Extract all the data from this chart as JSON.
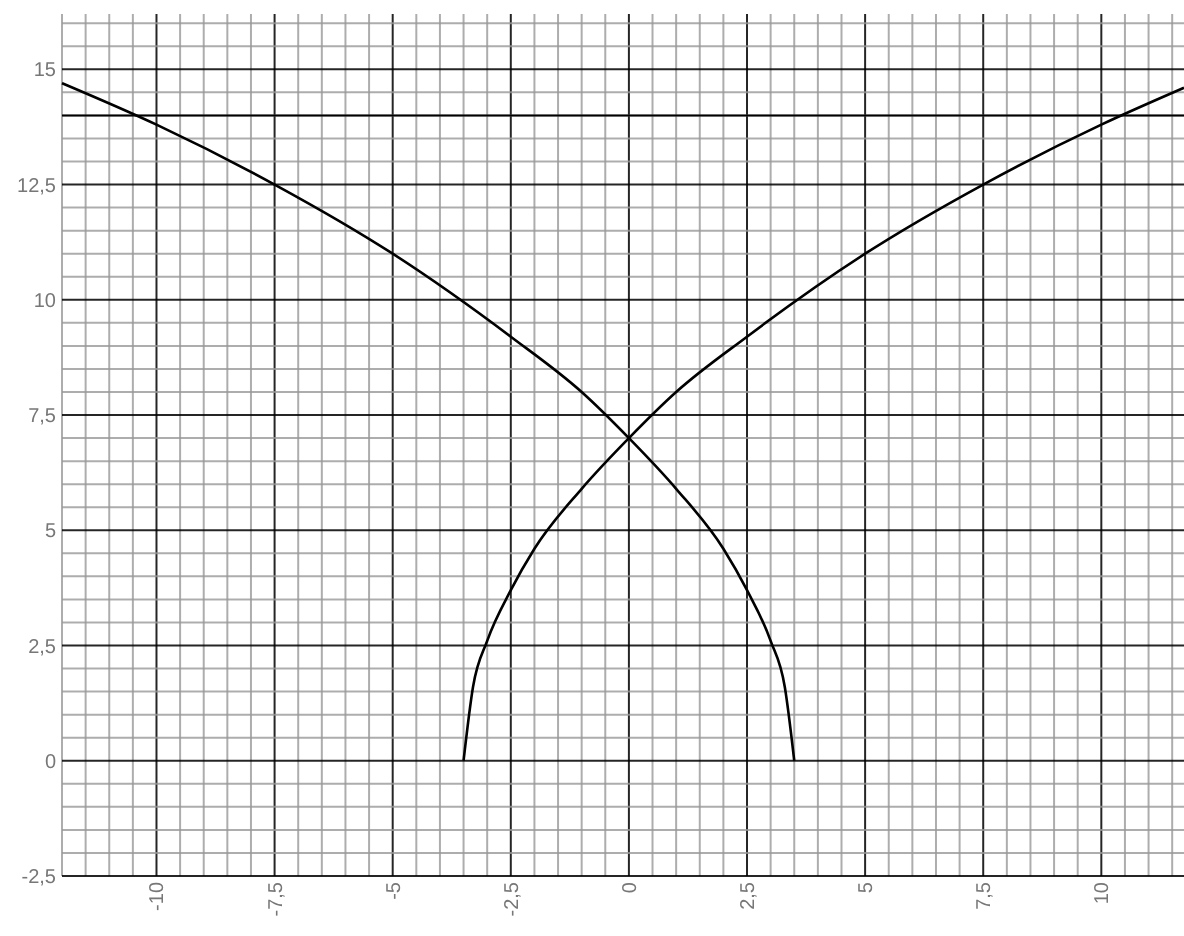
{
  "chart_data": {
    "type": "line",
    "xlim": [
      -12,
      11.75
    ],
    "ylim": [
      -2.5,
      16.2
    ],
    "grid": true,
    "line_style": "solid",
    "marker": "none",
    "xticks": [
      {
        "value": -12,
        "label": null
      },
      {
        "value": -11.5,
        "label": null
      },
      {
        "value": -11,
        "label": null
      },
      {
        "value": -10.5,
        "label": null
      },
      -10,
      {
        "value": -9.5,
        "label": null
      },
      {
        "value": -9,
        "label": null
      },
      {
        "value": -8.5,
        "label": null
      },
      {
        "value": -8,
        "label": null
      },
      {
        "value": -7.5,
        "label": "-7,5"
      },
      {
        "value": -7,
        "label": null
      },
      {
        "value": -6.5,
        "label": null
      },
      {
        "value": -6,
        "label": null
      },
      {
        "value": -5.5,
        "label": null
      },
      -5,
      {
        "value": -4.5,
        "label": null
      },
      {
        "value": -4,
        "label": null
      },
      {
        "value": -3.5,
        "label": null
      },
      {
        "value": -3,
        "label": null
      },
      {
        "value": -2.5,
        "label": "-2,5"
      },
      {
        "value": -2,
        "label": null
      },
      {
        "value": -1.5,
        "label": null
      },
      {
        "value": -1,
        "label": null
      },
      {
        "value": -0.5,
        "label": null
      },
      0,
      {
        "value": 0.5,
        "label": null
      },
      {
        "value": 1,
        "label": null
      },
      {
        "value": 1.5,
        "label": null
      },
      {
        "value": 2,
        "label": null
      },
      {
        "value": 2.5,
        "label": "2,5"
      },
      {
        "value": 3,
        "label": null
      },
      {
        "value": 3.5,
        "label": null
      },
      {
        "value": 4,
        "label": null
      },
      {
        "value": 4.5,
        "label": null
      },
      5,
      {
        "value": 5.5,
        "label": null
      },
      {
        "value": 6,
        "label": null
      },
      {
        "value": 6.5,
        "label": null
      },
      {
        "value": 7,
        "label": null
      },
      {
        "value": 7.5,
        "label": "7,5"
      },
      {
        "value": 8,
        "label": null
      },
      {
        "value": 8.5,
        "label": null
      },
      {
        "value": 9,
        "label": null
      },
      {
        "value": 9.5,
        "label": null
      },
      10,
      {
        "value": 10.5,
        "label": null
      },
      {
        "value": 11,
        "label": null
      },
      {
        "value": 11.5,
        "label": null
      }
    ],
    "yticks": [
      {
        "value": -2.5,
        "label": "-2,5"
      },
      {
        "value": -2,
        "label": null
      },
      {
        "value": -1.5,
        "label": null
      },
      {
        "value": -1,
        "label": null
      },
      {
        "value": -0.5,
        "label": null
      },
      0,
      {
        "value": 0.5,
        "label": null
      },
      {
        "value": 1,
        "label": null
      },
      {
        "value": 1.5,
        "label": null
      },
      {
        "value": 2,
        "label": null
      },
      {
        "value": 2.5,
        "label": "2,5"
      },
      {
        "value": 3,
        "label": null
      },
      {
        "value": 3.5,
        "label": null
      },
      {
        "value": 4,
        "label": null
      },
      {
        "value": 4.5,
        "label": null
      },
      5,
      {
        "value": 5.5,
        "label": null
      },
      {
        "value": 6,
        "label": null
      },
      {
        "value": 6.5,
        "label": null
      },
      {
        "value": 7,
        "label": null
      },
      {
        "value": 7.5,
        "label": "7,5"
      },
      {
        "value": 8,
        "label": null
      },
      {
        "value": 8.5,
        "label": null
      },
      {
        "value": 9,
        "label": null
      },
      {
        "value": 9.5,
        "label": null
      },
      10,
      {
        "value": 10.5,
        "label": null
      },
      {
        "value": 11,
        "label": null
      },
      {
        "value": 11.5,
        "label": null
      },
      {
        "value": 12,
        "label": null
      },
      {
        "value": 12.5,
        "label": "12,5"
      },
      {
        "value": 13,
        "label": null
      },
      {
        "value": 13.5,
        "label": null
      },
      {
        "value": 14,
        "label": null
      },
      {
        "value": 14.5,
        "label": null
      },
      15,
      {
        "value": 15.5,
        "label": null
      },
      {
        "value": 16,
        "label": null
      }
    ],
    "ref_lines": [
      {
        "axis": "y",
        "value": 14,
        "color": "#000000"
      }
    ],
    "series": [
      {
        "color": "#000000",
        "x": [
          -12,
          -10,
          -7.5,
          -5,
          -2.5,
          -1,
          0,
          1,
          2,
          2.5,
          3,
          3.3,
          3.5
        ],
        "values": [
          14.7,
          13.8,
          12.5,
          11,
          9.2,
          8,
          7,
          5.9,
          4.6,
          3.7,
          2.6,
          1.6,
          0
        ]
      },
      {
        "color": "#000000",
        "x": [
          -3.5,
          -3.3,
          -3,
          -2.5,
          -2,
          -1,
          0,
          1,
          2.5,
          5,
          7.5,
          10,
          11.75
        ],
        "values": [
          0,
          1.6,
          2.6,
          3.7,
          4.6,
          5.9,
          7,
          8,
          9.2,
          11,
          12.5,
          13.8,
          14.6
        ]
      }
    ]
  }
}
